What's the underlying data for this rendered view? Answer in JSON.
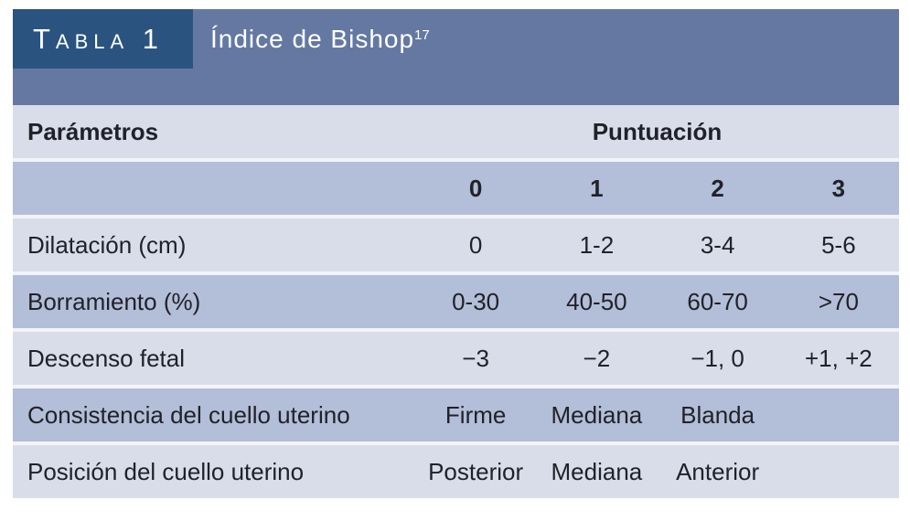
{
  "table": {
    "tag": "Tabla 1",
    "title": "Índice de Bishop",
    "title_ref": "17",
    "header": {
      "parameters": "Parámetros",
      "score": "Puntuación"
    },
    "score_scale": [
      "0",
      "1",
      "2",
      "3"
    ],
    "rows": [
      {
        "label": "Dilatación (cm)",
        "values": [
          "0",
          "1-2",
          "3-4",
          "5-6"
        ]
      },
      {
        "label": "Borramiento (%)",
        "values": [
          "0-30",
          "40-50",
          "60-70",
          ">70"
        ]
      },
      {
        "label": "Descenso fetal",
        "values": [
          "−3",
          "−2",
          "−1, 0",
          "+1, +2"
        ]
      },
      {
        "label": "Consistencia del cuello uterino",
        "values": [
          "Firme",
          "Mediana",
          "Blanda",
          ""
        ]
      },
      {
        "label": "Posición del cuello uterino",
        "values": [
          "Posterior",
          "Mediana",
          "Anterior",
          ""
        ]
      }
    ],
    "colors": {
      "band": "#6478a2",
      "tag_box": "#2a547f",
      "row_light": "#d8dde9",
      "row_dark": "#b3bed8",
      "separator": "#f2f4f9",
      "text": "#21212a",
      "header_text": "#ffffff"
    }
  }
}
